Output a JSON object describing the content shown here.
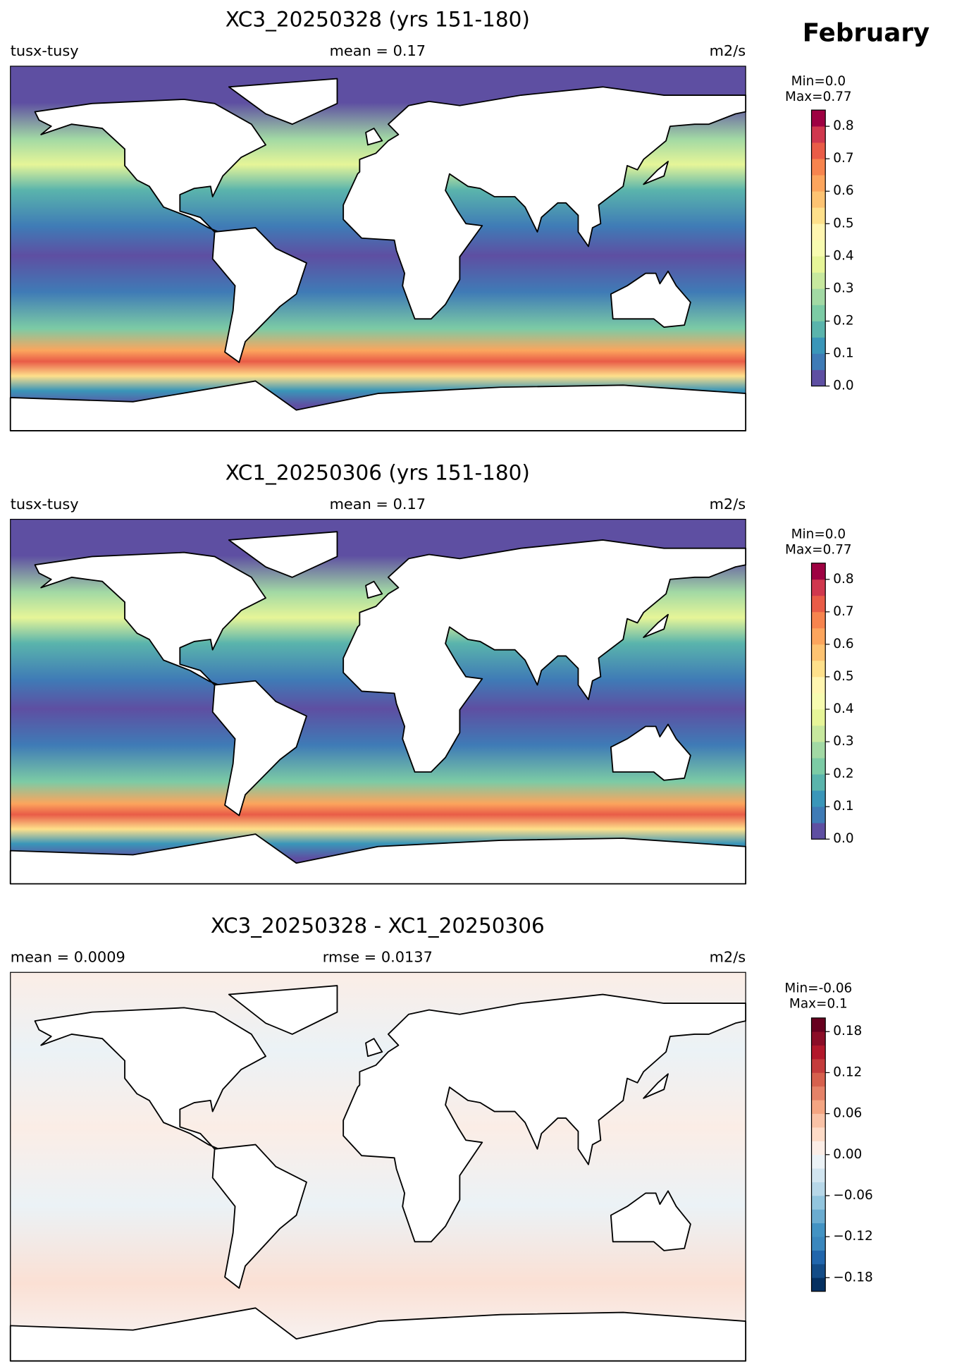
{
  "figure_title": "February",
  "chart_data": [
    {
      "type": "map",
      "title": "XC3_20250328 (yrs 151-180)",
      "left_label": "tusx-tusy",
      "center_label": "mean = 0.17",
      "right_label": "m2/s",
      "colorbar": {
        "min_label": "Min=0.0",
        "max_label": "Max=0.77",
        "lim": [
          0,
          0.85
        ],
        "ticks": [
          {
            "value": 0,
            "label": "0.0"
          },
          0.1,
          0.2,
          0.3,
          0.4,
          0.5,
          0.6,
          0.7,
          0.8
        ],
        "colors": [
          "#5e4fa2",
          "#3f7bb6",
          "#3a96b9",
          "#5ab4ac",
          "#7ccba5",
          "#a2d9a4",
          "#c7e89e",
          "#e6f598",
          "#f7fbb0",
          "#fff5b0",
          "#fee08b",
          "#fdc372",
          "#fca55d",
          "#f7844e",
          "#e95c47",
          "#d0384e",
          "#9e0142"
        ]
      }
    },
    {
      "type": "map",
      "title": "XC1_20250306 (yrs 151-180)",
      "left_label": "tusx-tusy",
      "center_label": "mean = 0.17",
      "right_label": "m2/s",
      "colorbar": {
        "min_label": "Min=0.0",
        "max_label": "Max=0.77",
        "lim": [
          0,
          0.85
        ],
        "ticks": [
          {
            "value": 0,
            "label": "0.0"
          },
          0.1,
          0.2,
          0.3,
          0.4,
          0.5,
          0.6,
          0.7,
          0.8
        ],
        "colors": [
          "#5e4fa2",
          "#3f7bb6",
          "#3a96b9",
          "#5ab4ac",
          "#7ccba5",
          "#a2d9a4",
          "#c7e89e",
          "#e6f598",
          "#f7fbb0",
          "#fff5b0",
          "#fee08b",
          "#fdc372",
          "#fca55d",
          "#f7844e",
          "#e95c47",
          "#d0384e",
          "#9e0142"
        ]
      }
    },
    {
      "type": "map",
      "title": "XC3_20250328 - XC1_20250306",
      "left_label": "mean = 0.0009",
      "center_label": "rmse = 0.0137",
      "right_label": "m2/s",
      "colorbar": {
        "min_label": "Min=-0.06",
        "max_label": "Max=0.1",
        "lim": [
          -0.2,
          0.2
        ],
        "ticks": [
          {
            "value": -0.18,
            "label": "−0.18"
          },
          {
            "value": -0.12,
            "label": "−0.12"
          },
          {
            "value": -0.06,
            "label": "−0.06"
          },
          {
            "value": 0,
            "label": "0.00"
          },
          0.06,
          0.12,
          0.18
        ],
        "colors": [
          "#053061",
          "#134c87",
          "#2166ac",
          "#3a87bd",
          "#4393c3",
          "#6bacd0",
          "#92c5de",
          "#b7d7e8",
          "#d1e5f0",
          "#ebf2f6",
          "#fbede6",
          "#fddbc7",
          "#f9c2a6",
          "#f4a582",
          "#e58268",
          "#d6604d",
          "#c43c3c",
          "#b2182b",
          "#8b0d27",
          "#67001f"
        ]
      }
    }
  ]
}
